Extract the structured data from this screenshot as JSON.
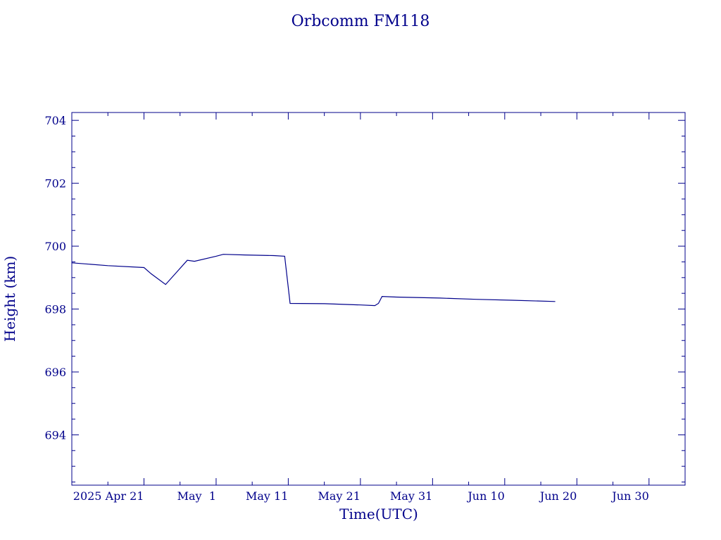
{
  "chart_data": {
    "type": "line",
    "title": "Orbcomm FM118",
    "xlabel": "Time(UTC)",
    "ylabel": "Height (km)",
    "color": "#00008b",
    "xlim": [
      "2025-04-11T00:00",
      "2025-07-05T00:00"
    ],
    "ylim": [
      692.4,
      704.25
    ],
    "x_ticks": [
      {
        "date": "2025-04-21",
        "label": "2025 Apr 21"
      },
      {
        "date": "2025-05-01",
        "label": "May  1"
      },
      {
        "date": "2025-05-11",
        "label": "May 11"
      },
      {
        "date": "2025-05-21",
        "label": "May 21"
      },
      {
        "date": "2025-05-31",
        "label": "May 31"
      },
      {
        "date": "2025-06-10",
        "label": "Jun 10"
      },
      {
        "date": "2025-06-20",
        "label": "Jun 20"
      },
      {
        "date": "2025-06-30",
        "label": "Jun 30"
      }
    ],
    "y_ticks": [
      694,
      696,
      698,
      700,
      702,
      704
    ],
    "series": [
      {
        "x": [
          "2025-04-11T00:00",
          "2025-04-16T00:00",
          "2025-04-21T00:00",
          "2025-04-22T00:00",
          "2025-04-24T00:00",
          "2025-04-27T00:00",
          "2025-04-28T00:00",
          "2025-05-01T00:00",
          "2025-05-02T00:00",
          "2025-05-05T00:00",
          "2025-05-09T00:00",
          "2025-05-10T12:00",
          "2025-05-11T06:00",
          "2025-05-16T00:00",
          "2025-05-21T00:00",
          "2025-05-23T00:00",
          "2025-05-23T12:00",
          "2025-05-24T00:00",
          "2025-05-26T00:00",
          "2025-06-01T00:00",
          "2025-06-06T00:00",
          "2025-06-11T00:00",
          "2025-06-17T00:00"
        ],
        "y": [
          699.47,
          699.38,
          699.32,
          699.12,
          698.78,
          699.55,
          699.52,
          699.68,
          699.74,
          699.72,
          699.7,
          699.68,
          698.18,
          698.17,
          698.13,
          698.11,
          698.18,
          698.4,
          698.38,
          698.35,
          698.31,
          698.28,
          698.24
        ]
      }
    ]
  }
}
